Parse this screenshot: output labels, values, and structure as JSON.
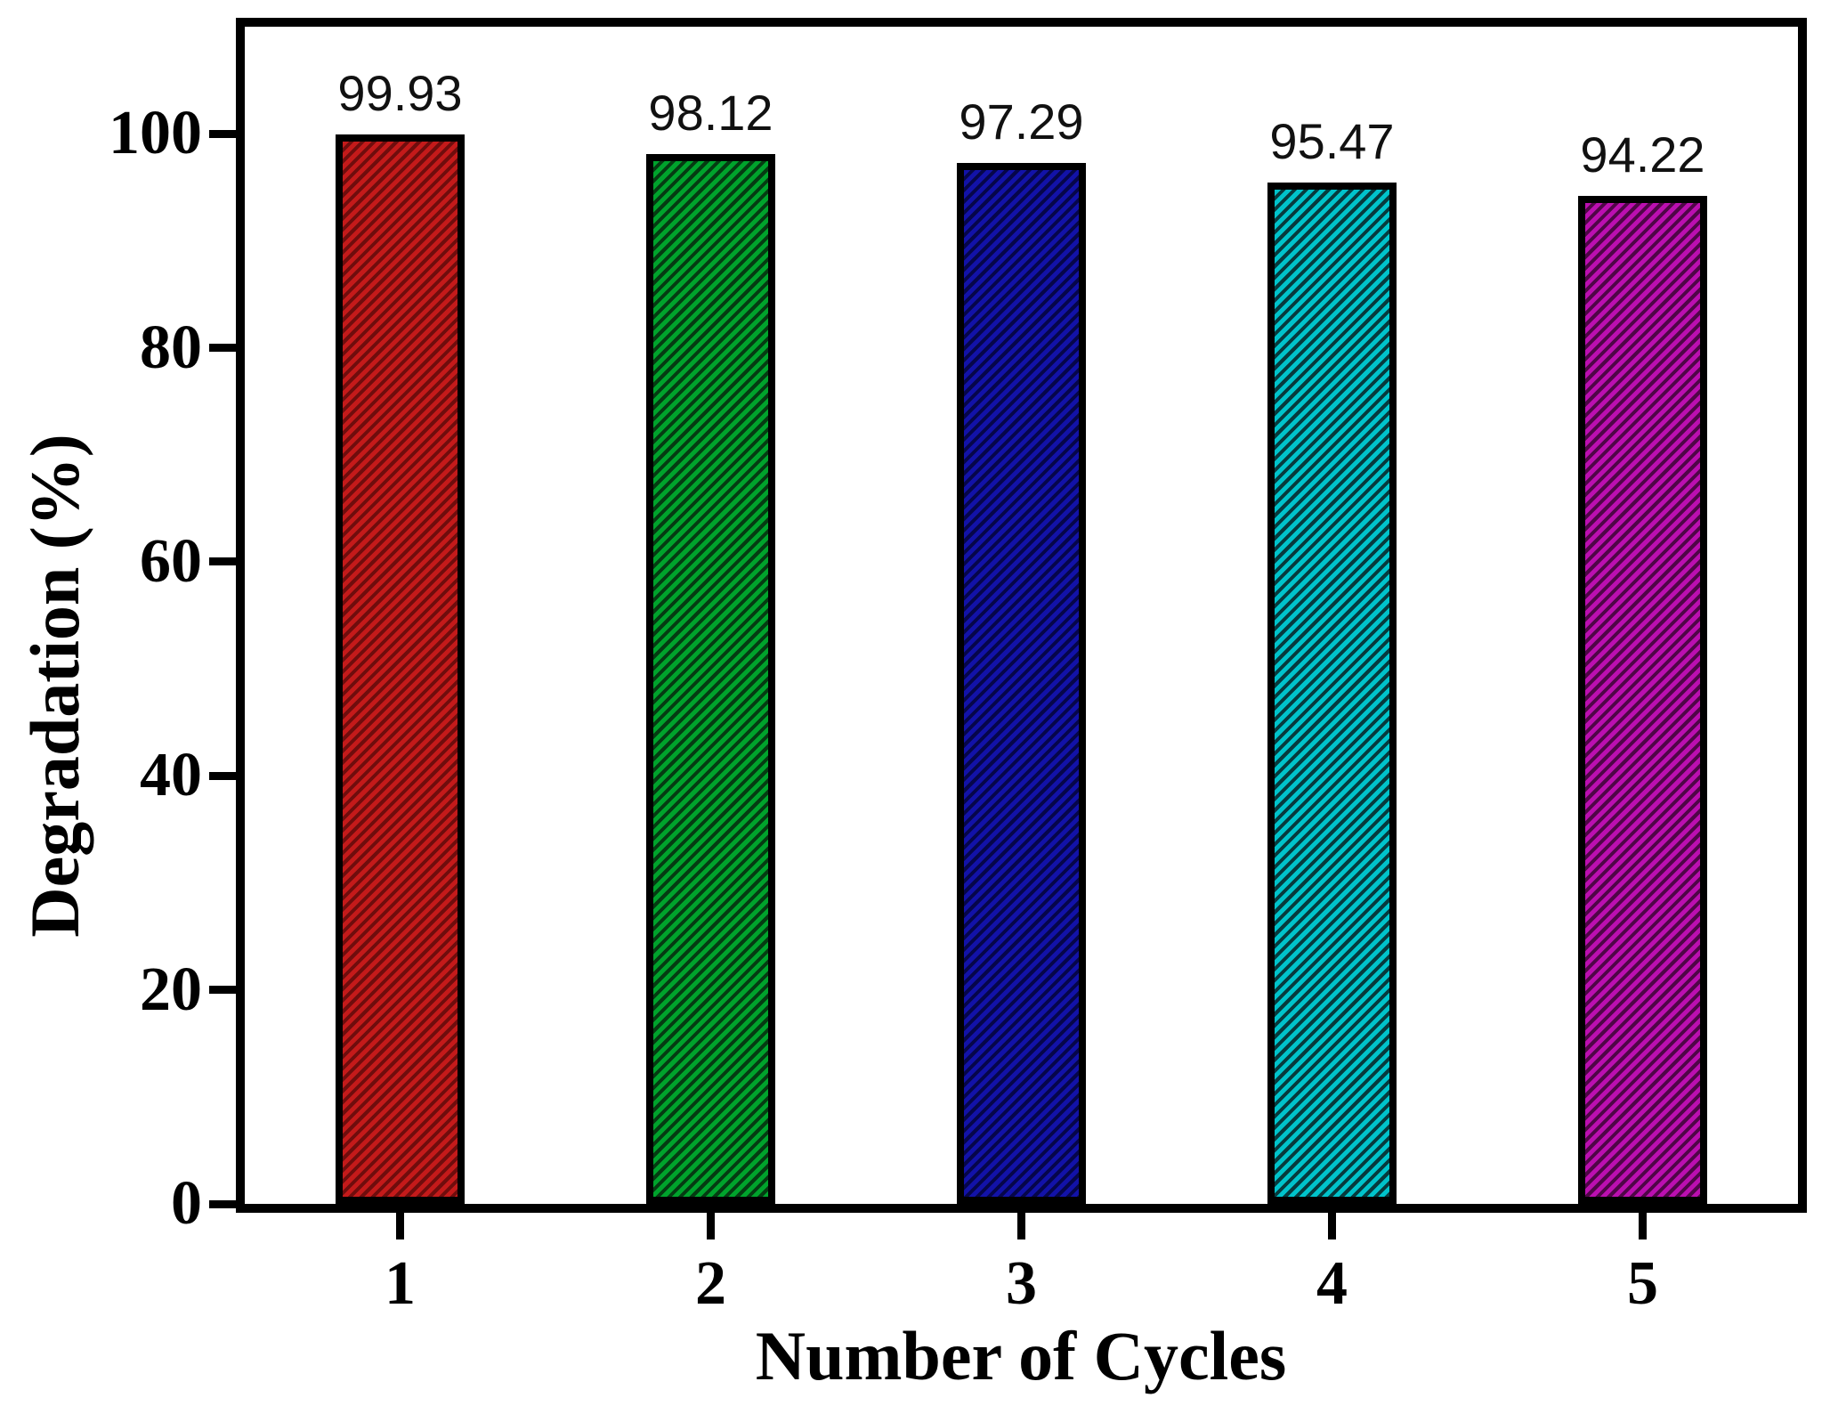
{
  "chart_data": {
    "type": "bar",
    "title": "",
    "xlabel": "Number of Cycles",
    "ylabel": "Degradation (%)",
    "categories": [
      "1",
      "2",
      "3",
      "4",
      "5"
    ],
    "values": [
      99.93,
      98.12,
      97.29,
      95.47,
      94.22
    ],
    "value_label_format": "2dp",
    "y_ticks": [
      0,
      20,
      40,
      60,
      80,
      100
    ],
    "ylim": [
      0,
      110
    ],
    "grid": false,
    "legend": null,
    "hatch_direction": "/",
    "bar_border_color": "#000000",
    "frame_color": "#000000",
    "background_color": "#ffffff",
    "bars": [
      {
        "category": "1",
        "value": 99.93,
        "fill": "#c41a1a",
        "hatch": "#6f0d0d"
      },
      {
        "category": "2",
        "value": 98.12,
        "fill": "#00a32c",
        "hatch": "#053b12"
      },
      {
        "category": "3",
        "value": 97.29,
        "fill": "#1212a8",
        "hatch": "#06064a"
      },
      {
        "category": "4",
        "value": 95.47,
        "fill": "#00c3cb",
        "hatch": "#073a3d"
      },
      {
        "category": "5",
        "value": 94.22,
        "fill": "#bb0fb0",
        "hatch": "#4f0647"
      }
    ]
  }
}
